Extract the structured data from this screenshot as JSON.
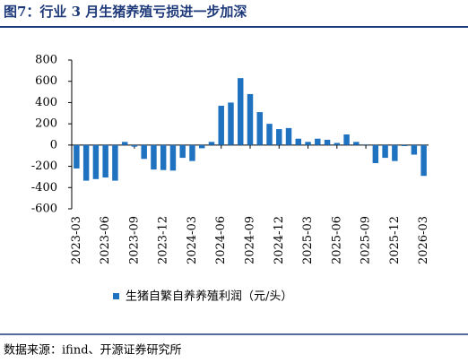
{
  "chart_data": {
    "type": "bar",
    "title": "图7：行业 3 月生猪养殖亏损进一步加深",
    "source": "数据来源：ifind、开源证券研究所",
    "categories": [
      "2023-03",
      null,
      null,
      "2023-06",
      null,
      null,
      "2023-09",
      null,
      null,
      "2023-12",
      null,
      null,
      "2024-03",
      null,
      null,
      "2024-06",
      null,
      null,
      "2024-09",
      null,
      null,
      "2024-12",
      null,
      null,
      "2025-03",
      null,
      null,
      "2025-06",
      null,
      null,
      "2025-09",
      null,
      null,
      "2025-12",
      null,
      null,
      "2026-03"
    ],
    "series": [
      {
        "name": "生猪自繁自养养殖利润（元/头）",
        "color": "#1f72c0",
        "values": [
          -220,
          -335,
          -320,
          -305,
          -335,
          30,
          -15,
          -130,
          -230,
          -235,
          -240,
          -120,
          -150,
          -30,
          30,
          370,
          400,
          630,
          480,
          310,
          200,
          150,
          160,
          60,
          30,
          60,
          50,
          20,
          100,
          30,
          5,
          -170,
          -120,
          -150,
          -10,
          -90,
          -290
        ]
      }
    ],
    "ylim": [
      -600,
      800
    ],
    "yticks": [
      -600,
      -400,
      -200,
      0,
      200,
      400,
      600,
      800
    ]
  }
}
